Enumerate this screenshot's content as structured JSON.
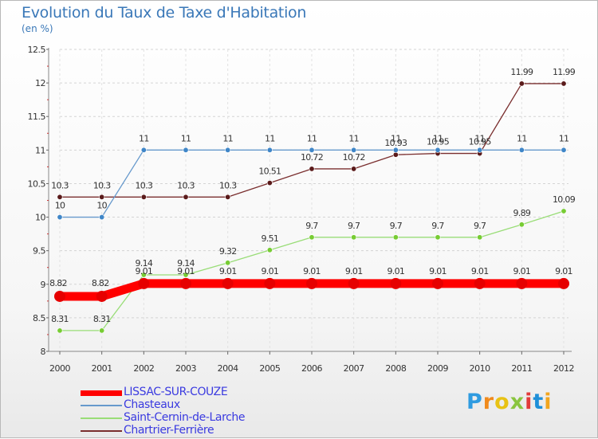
{
  "chart_data": {
    "type": "line",
    "title": "Evolution du Taux de Taxe d'Habitation",
    "subtitle": "(en %)",
    "xlabel": "",
    "ylabel": "",
    "ylim": [
      8,
      12.5
    ],
    "yticks": [
      "8",
      "8.5",
      "9",
      "9.5",
      "10",
      "10.5",
      "11",
      "11.5",
      "12",
      "12.5"
    ],
    "x": [
      "2000",
      "2001",
      "2002",
      "2003",
      "2004",
      "2005",
      "2006",
      "2007",
      "2008",
      "2009",
      "2010",
      "2011",
      "2012"
    ],
    "series": [
      {
        "name": "LISSAC-SUR-COUZE",
        "color": "#ff0000",
        "marker": "#e60000",
        "values": [
          8.82,
          8.82,
          9.01,
          9.01,
          9.01,
          9.01,
          9.01,
          9.01,
          9.01,
          9.01,
          9.01,
          9.01,
          9.01
        ],
        "labels": [
          "8.82",
          "8.82",
          "9.01",
          "9.01",
          "9.01",
          "9.01",
          "9.01",
          "9.01",
          "9.01",
          "9.01",
          "9.01",
          "9.01",
          "9.01"
        ]
      },
      {
        "name": "Chasteaux",
        "color": "#6699cc",
        "marker": "#3f86c8",
        "values": [
          10,
          10,
          11,
          11,
          11,
          11,
          11,
          11,
          11,
          11,
          11,
          11,
          11
        ],
        "labels": [
          "10",
          "10",
          "11",
          "11",
          "11",
          "11",
          "11",
          "11",
          "11",
          "11",
          "11",
          "11",
          "11"
        ]
      },
      {
        "name": "Saint-Cernin-de-Larche",
        "color": "#99dd77",
        "marker": "#77cc33",
        "values": [
          8.31,
          8.31,
          9.14,
          9.14,
          9.32,
          9.51,
          9.7,
          9.7,
          9.7,
          9.7,
          9.7,
          9.89,
          10.09
        ],
        "labels": [
          "8.31",
          "8.31",
          "9.14",
          "9.14",
          "9.32",
          "9.51",
          "9.7",
          "9.7",
          "9.7",
          "9.7",
          "9.7",
          "9.89",
          "10.09"
        ]
      },
      {
        "name": "Chartrier-Ferrière",
        "color": "#7a2e2e",
        "marker": "#5a1a1a",
        "values": [
          10.3,
          10.3,
          10.3,
          10.3,
          10.3,
          10.51,
          10.72,
          10.72,
          10.93,
          10.95,
          10.95,
          11.99,
          11.99
        ],
        "labels": [
          "10.3",
          "10.3",
          "10.3",
          "10.3",
          "10.3",
          "10.51",
          "10.72",
          "10.72",
          "10.93",
          "10.95",
          "10.95",
          "11.99",
          "11.99"
        ]
      }
    ],
    "legend_position": "bottom-left"
  },
  "logo": {
    "letters": [
      "P",
      "r",
      "o",
      "x",
      "i",
      "t",
      "i"
    ]
  }
}
